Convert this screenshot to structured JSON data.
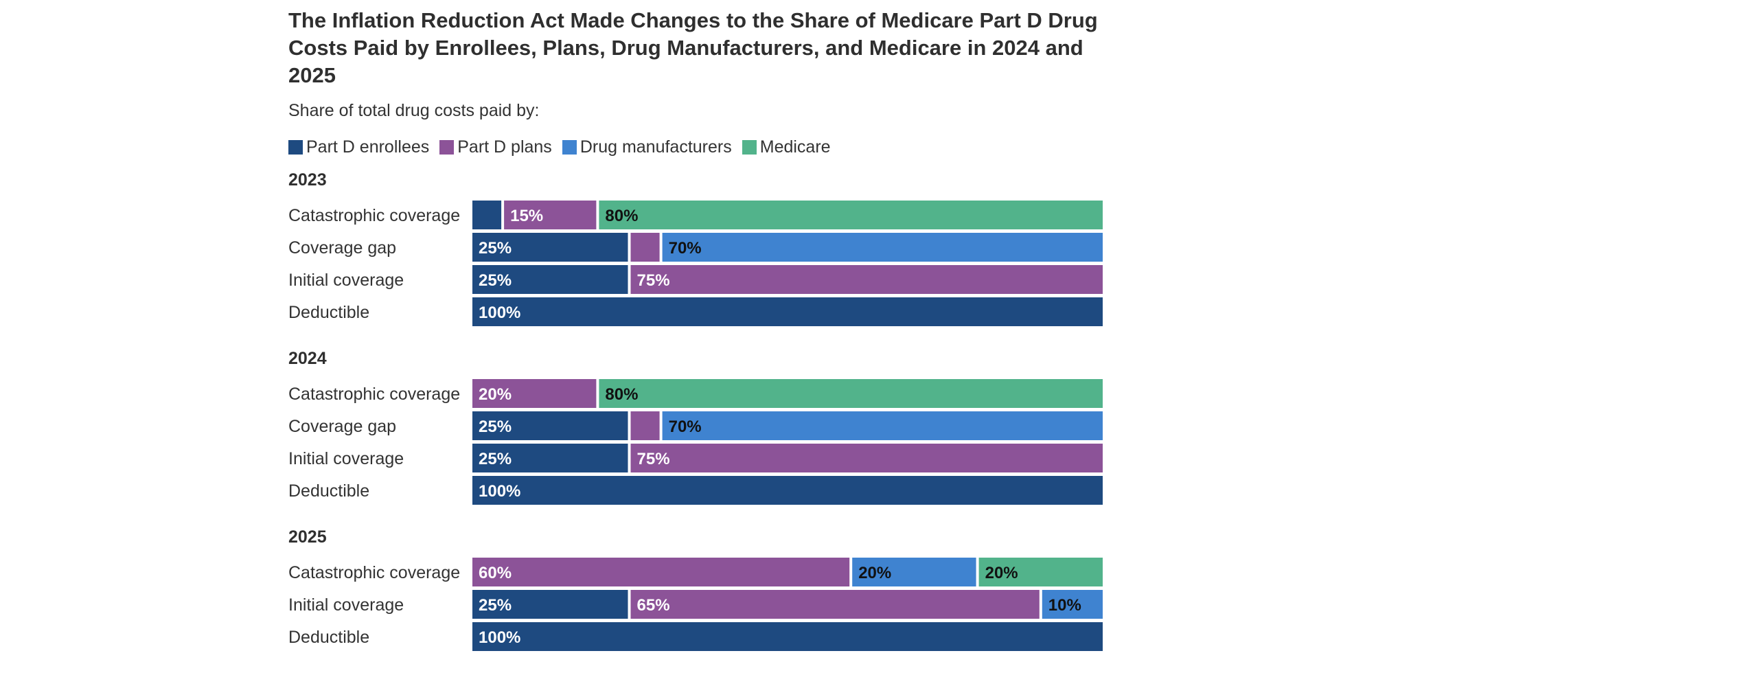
{
  "chart_data": {
    "type": "bar",
    "orientation": "horizontal",
    "stacked": true,
    "title": "The Inflation Reduction Act Made Changes to the Share of Medicare Part D Drug Costs Paid by Enrollees, Plans, Drug Manufacturers, and Medicare in 2024 and 2025",
    "subtitle": "Share of total drug costs paid by:",
    "xlim": [
      0,
      100
    ],
    "grid": false,
    "legend_position": "top-left",
    "series": [
      {
        "key": "enrollees",
        "name": "Part D enrollees",
        "color": "#1e4a80",
        "label_color": "#ffffff"
      },
      {
        "key": "plans",
        "name": "Part D plans",
        "color": "#8c5398",
        "label_color": "#ffffff"
      },
      {
        "key": "manufacturers",
        "name": "Drug manufacturers",
        "color": "#3f83d0",
        "label_color": "#111111"
      },
      {
        "key": "medicare",
        "name": "Medicare",
        "color": "#52b38b",
        "label_color": "#111111"
      }
    ],
    "groups": [
      {
        "year": "2023",
        "rows": [
          {
            "label": "Catastrophic coverage",
            "values": {
              "enrollees": 5,
              "plans": 15,
              "manufacturers": 0,
              "medicare": 80
            },
            "labels": {
              "enrollees": "",
              "plans": "15%",
              "manufacturers": "",
              "medicare": "80%"
            }
          },
          {
            "label": "Coverage gap",
            "values": {
              "enrollees": 25,
              "plans": 5,
              "manufacturers": 70,
              "medicare": 0
            },
            "labels": {
              "enrollees": "25%",
              "plans": "",
              "manufacturers": "70%",
              "medicare": ""
            }
          },
          {
            "label": "Initial coverage",
            "values": {
              "enrollees": 25,
              "plans": 75,
              "manufacturers": 0,
              "medicare": 0
            },
            "labels": {
              "enrollees": "25%",
              "plans": "75%",
              "manufacturers": "",
              "medicare": ""
            }
          },
          {
            "label": "Deductible",
            "values": {
              "enrollees": 100,
              "plans": 0,
              "manufacturers": 0,
              "medicare": 0
            },
            "labels": {
              "enrollees": "100%",
              "plans": "",
              "manufacturers": "",
              "medicare": ""
            }
          }
        ]
      },
      {
        "year": "2024",
        "rows": [
          {
            "label": "Catastrophic coverage",
            "values": {
              "enrollees": 0,
              "plans": 20,
              "manufacturers": 0,
              "medicare": 80
            },
            "labels": {
              "enrollees": "",
              "plans": "20%",
              "manufacturers": "",
              "medicare": "80%"
            }
          },
          {
            "label": "Coverage gap",
            "values": {
              "enrollees": 25,
              "plans": 5,
              "manufacturers": 70,
              "medicare": 0
            },
            "labels": {
              "enrollees": "25%",
              "plans": "",
              "manufacturers": "70%",
              "medicare": ""
            }
          },
          {
            "label": "Initial coverage",
            "values": {
              "enrollees": 25,
              "plans": 75,
              "manufacturers": 0,
              "medicare": 0
            },
            "labels": {
              "enrollees": "25%",
              "plans": "75%",
              "manufacturers": "",
              "medicare": ""
            }
          },
          {
            "label": "Deductible",
            "values": {
              "enrollees": 100,
              "plans": 0,
              "manufacturers": 0,
              "medicare": 0
            },
            "labels": {
              "enrollees": "100%",
              "plans": "",
              "manufacturers": "",
              "medicare": ""
            }
          }
        ]
      },
      {
        "year": "2025",
        "rows": [
          {
            "label": "Catastrophic coverage",
            "values": {
              "enrollees": 0,
              "plans": 60,
              "manufacturers": 20,
              "medicare": 20
            },
            "labels": {
              "enrollees": "",
              "plans": "60%",
              "manufacturers": "20%",
              "medicare": "20%"
            }
          },
          {
            "label": "Initial coverage",
            "values": {
              "enrollees": 25,
              "plans": 65,
              "manufacturers": 10,
              "medicare": 0
            },
            "labels": {
              "enrollees": "25%",
              "plans": "65%",
              "manufacturers": "10%",
              "medicare": ""
            }
          },
          {
            "label": "Deductible",
            "values": {
              "enrollees": 100,
              "plans": 0,
              "manufacturers": 0,
              "medicare": 0
            },
            "labels": {
              "enrollees": "100%",
              "plans": "",
              "manufacturers": "",
              "medicare": ""
            }
          }
        ]
      }
    ]
  }
}
